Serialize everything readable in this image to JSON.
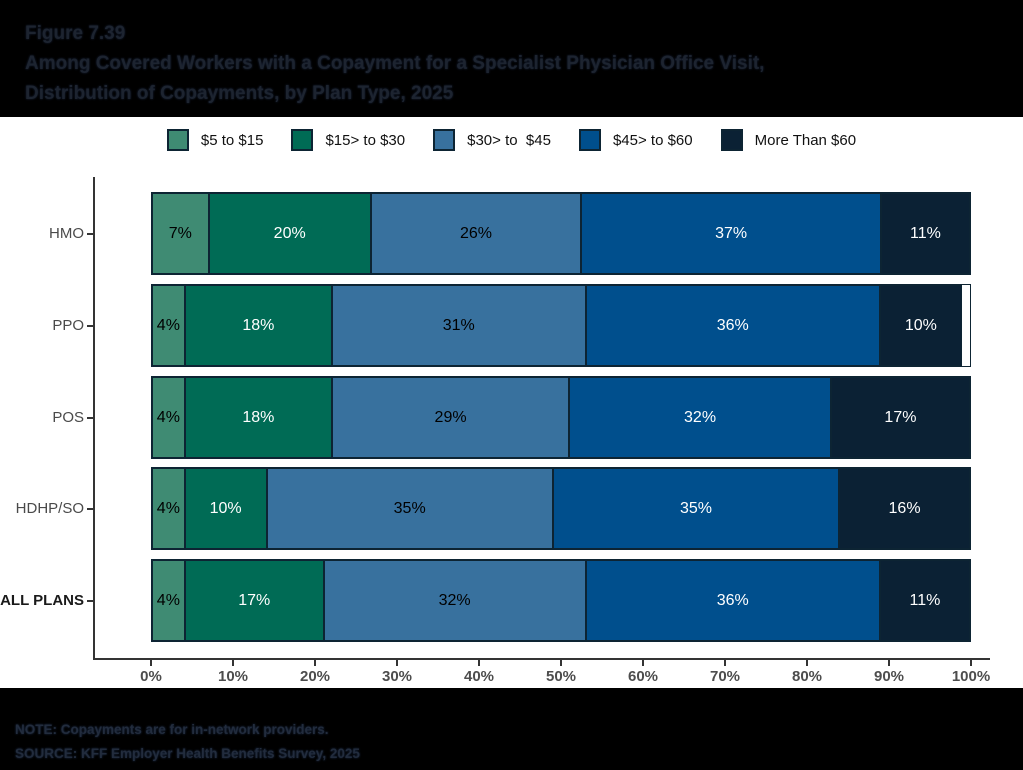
{
  "header": {
    "figure_label": "Figure 7.39",
    "title_line1": "Among Covered Workers with a Copayment for a Specialist Physician Office Visit,",
    "title_line2": "Distribution of Copayments, by Plan Type, 2025"
  },
  "chart_data": {
    "type": "bar",
    "stacked": true,
    "orientation": "horizontal",
    "title": "Among Covered Workers with a Copayment for a Specialist Physician Office Visit, Distribution of Copayments, by Plan Type, 2025",
    "categories": [
      "HMO",
      "PPO",
      "POS",
      "HDHP/SO",
      "ALL PLANS"
    ],
    "bold_categories": [
      "ALL PLANS"
    ],
    "series": [
      {
        "name": "$5 to $15",
        "color": "#3f8b73",
        "label_color": "#000000",
        "values": [
          7,
          4,
          4,
          4,
          4
        ]
      },
      {
        "name": "$15> to $30",
        "color": "#006b55",
        "label_color": "#ffffff",
        "values": [
          20,
          18,
          18,
          10,
          17
        ]
      },
      {
        "name": "$30> to  $45",
        "color": "#38719e",
        "label_color": "#000000",
        "values": [
          26,
          31,
          29,
          35,
          32
        ]
      },
      {
        "name": "$45> to $60",
        "color": "#004f8d",
        "label_color": "#ffffff",
        "values": [
          37,
          36,
          32,
          35,
          36
        ]
      },
      {
        "name": "More Than $60",
        "color": "#0b2134",
        "label_color": "#ffffff",
        "values": [
          11,
          10,
          17,
          16,
          11
        ]
      }
    ],
    "value_suffix": "%",
    "xlim": [
      0,
      100
    ],
    "x_ticks": [
      "0%",
      "10%",
      "20%",
      "30%",
      "40%",
      "50%",
      "60%",
      "70%",
      "80%",
      "90%",
      "100%"
    ],
    "legend_position": "top",
    "grid": false
  },
  "footer": {
    "note": "NOTE: Copayments are for in-network providers.",
    "source": "SOURCE: KFF Employer Health Benefits Survey, 2025"
  }
}
